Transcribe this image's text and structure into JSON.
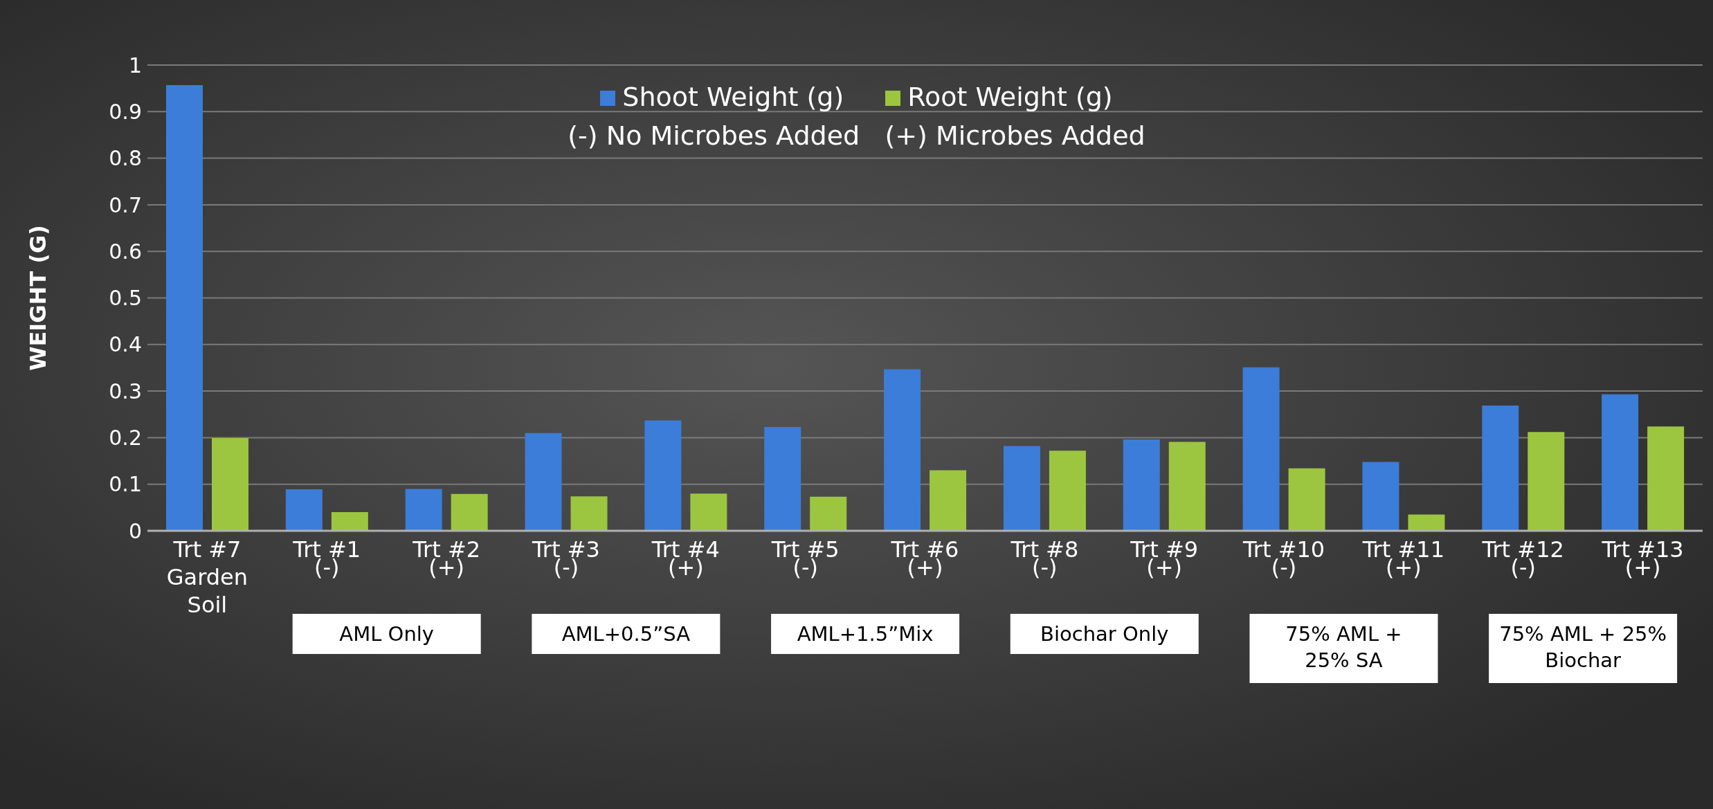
{
  "chart_data": {
    "type": "bar",
    "ylabel": "WEIGHT (G)",
    "categories": [
      "Trt #7\nGarden\nSoil",
      "Trt #1\n(-)",
      "Trt #2\n(+)",
      "Trt #3\n(-)",
      "Trt #4\n(+)",
      "Trt #5\n(-)",
      "Trt #6\n(+)",
      "Trt #8\n(-)",
      "Trt #9\n(+)",
      "Trt #10\n(-)",
      "Trt #11\n(+)",
      "Trt #12\n(-)",
      "Trt #13\n(+)"
    ],
    "series": [
      {
        "name": "Shoot Weight (g)",
        "color": "#3b7dd8",
        "values": [
          0.957,
          0.089,
          0.09,
          0.21,
          0.237,
          0.223,
          0.347,
          0.182,
          0.196,
          0.351,
          0.148,
          0.269,
          0.293
        ]
      },
      {
        "name": "Root Weight (g)",
        "color": "#9cc63f",
        "values": [
          0.199,
          0.04,
          0.079,
          0.074,
          0.08,
          0.073,
          0.13,
          0.172,
          0.191,
          0.134,
          0.035,
          0.212,
          0.224
        ]
      }
    ],
    "ylim": [
      0,
      1
    ],
    "yticks": [
      0,
      0.1,
      0.2,
      0.3,
      0.4,
      0.5,
      0.6,
      0.7,
      0.8,
      0.9,
      1
    ],
    "grid": "y",
    "legend": "top",
    "annotations": [
      "(-) No Microbes Added   (+) Microbes Added",
      "AML Only",
      "AML+0.5”SA",
      "AML+1.5”Mix",
      "Biochar Only",
      "75% AML +\n25% SA",
      "75% AML + 25%\nBiochar"
    ]
  }
}
